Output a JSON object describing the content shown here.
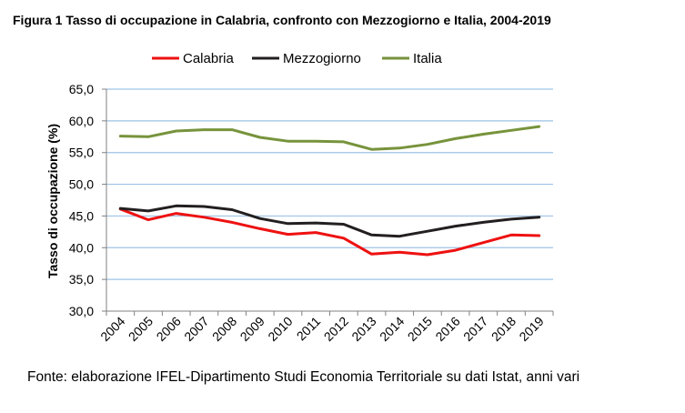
{
  "figure": {
    "title": "Figura 1 Tasso di occupazione in Calabria, confronto con Mezzogiorno e Italia, 2004-2019",
    "source": "Fonte: elaborazione IFEL-Dipartimento Studi Economia Territoriale su dati Istat, anni vari"
  },
  "chart_data": {
    "type": "line",
    "title": "Figura 1 Tasso di occupazione in Calabria, confronto con Mezzogiorno e Italia, 2004-2019",
    "xlabel": "",
    "ylabel": "Tasso di occupazione (%)",
    "ylim": [
      30,
      65
    ],
    "yticks": [
      "30,0",
      "35,0",
      "40,0",
      "45,0",
      "50,0",
      "55,0",
      "60,0",
      "65,0"
    ],
    "categories": [
      "2004",
      "2005",
      "2006",
      "2007",
      "2008",
      "2009",
      "2010",
      "2011",
      "2012",
      "2013",
      "2014",
      "2015",
      "2016",
      "2017",
      "2018",
      "2019"
    ],
    "grid": "horizontal",
    "legend_position": "top",
    "series": [
      {
        "name": "Calabria",
        "color": "#ee1111",
        "values": [
          46.1,
          44.4,
          45.4,
          44.8,
          44.0,
          43.0,
          42.1,
          42.4,
          41.5,
          39.0,
          39.3,
          38.9,
          39.6,
          40.8,
          42.0,
          41.9
        ]
      },
      {
        "name": "Mezzogiorno",
        "color": "#231f20",
        "values": [
          46.2,
          45.8,
          46.6,
          46.5,
          46.0,
          44.6,
          43.8,
          43.9,
          43.7,
          42.0,
          41.8,
          42.6,
          43.4,
          44.0,
          44.5,
          44.8
        ]
      },
      {
        "name": "Italia",
        "color": "#77933c",
        "values": [
          57.6,
          57.5,
          58.4,
          58.6,
          58.6,
          57.4,
          56.8,
          56.8,
          56.7,
          55.5,
          55.7,
          56.3,
          57.2,
          57.9,
          58.5,
          59.1
        ]
      }
    ]
  }
}
